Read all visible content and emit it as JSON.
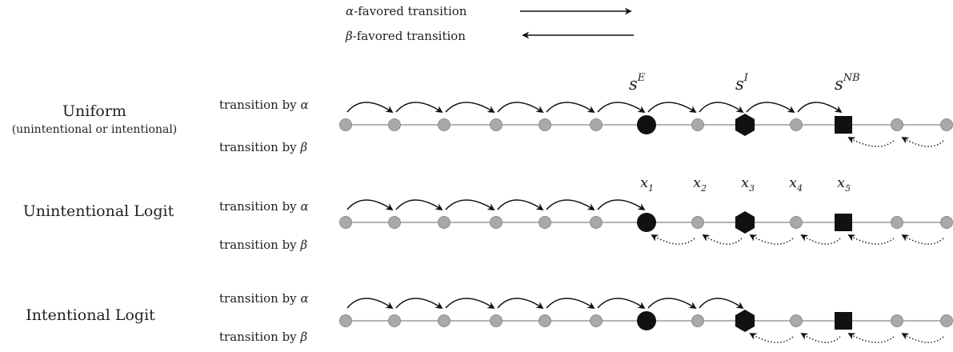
{
  "legend": {
    "alpha": {
      "symbol": "α",
      "text": "-favored transition"
    },
    "beta": {
      "symbol": "β",
      "text": "-favored transition"
    }
  },
  "transition_labels": {
    "alpha": "transition by ",
    "alpha_symbol": "α",
    "beta": "transition by ",
    "beta_symbol": "β"
  },
  "state_labels": {
    "sE": {
      "base": "s",
      "sup": "E"
    },
    "sI": {
      "base": "s",
      "sup": "I"
    },
    "sNB": {
      "base": "s",
      "sup": "NB"
    }
  },
  "x_labels": [
    {
      "base": "x",
      "sub": "1"
    },
    {
      "base": "x",
      "sub": "2"
    },
    {
      "base": "x",
      "sub": "3"
    },
    {
      "base": "x",
      "sub": "4"
    },
    {
      "base": "x",
      "sub": "5"
    }
  ],
  "colors": {
    "node_gray": "#a9a9a9",
    "node_gray_stroke": "#8c8c8c",
    "line": "#b4b4b4",
    "special": "#111111",
    "arrow": "#111111"
  },
  "rows": [
    {
      "title": "Uniform",
      "subtitle": "(unintentional or intentional)",
      "alpha_arrows": 10,
      "beta_arrows_from_node": [
        11,
        12
      ]
    },
    {
      "title": "Unintentional Logit",
      "subtitle": "",
      "alpha_arrows": 6,
      "beta_arrows_from_node": [
        7,
        8,
        9,
        10,
        11,
        12
      ]
    },
    {
      "title": "Intentional Logit",
      "subtitle": "",
      "alpha_arrows": 8,
      "beta_arrows_from_node": [
        9,
        10,
        11,
        12
      ]
    }
  ],
  "node_count": 13,
  "special_nodes": {
    "circle": 6,
    "hexagon": 8,
    "square": 10
  }
}
